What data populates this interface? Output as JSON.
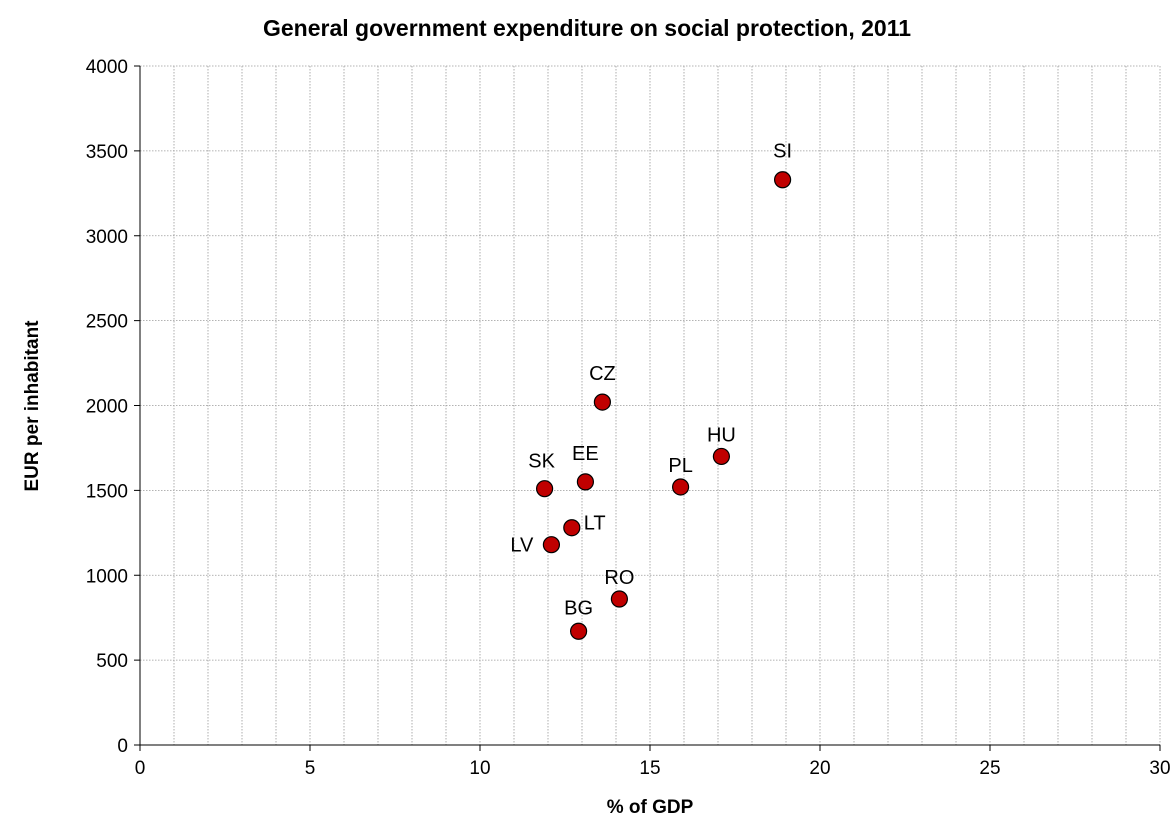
{
  "chart_data": {
    "type": "scatter",
    "title": "General government expenditure on social protection, 2011",
    "xlabel": "% of GDP",
    "ylabel": "EUR per inhabitant",
    "xlim": [
      0,
      30
    ],
    "ylim": [
      0,
      4000
    ],
    "x_ticks": [
      0,
      5,
      10,
      15,
      20,
      25,
      30
    ],
    "y_ticks": [
      0,
      500,
      1000,
      1500,
      2000,
      2500,
      3000,
      3500,
      4000
    ],
    "x_tick_labels": [
      "0",
      "5",
      "10",
      "15",
      "20",
      "25",
      "30"
    ],
    "y_tick_labels": [
      "0",
      "500",
      "1000",
      "1500",
      "2000",
      "2500",
      "3000",
      "3500",
      "4000"
    ],
    "grid": true,
    "legend": "none",
    "marker_color": "#c00000",
    "points": [
      {
        "label": "SI",
        "x": 18.9,
        "y": 3330
      },
      {
        "label": "CZ",
        "x": 13.6,
        "y": 2020
      },
      {
        "label": "HU",
        "x": 17.1,
        "y": 1700
      },
      {
        "label": "PL",
        "x": 15.9,
        "y": 1520
      },
      {
        "label": "EE",
        "x": 13.1,
        "y": 1550
      },
      {
        "label": "SK",
        "x": 11.9,
        "y": 1510
      },
      {
        "label": "LT",
        "x": 12.7,
        "y": 1280
      },
      {
        "label": "LV",
        "x": 12.1,
        "y": 1180
      },
      {
        "label": "RO",
        "x": 14.1,
        "y": 860
      },
      {
        "label": "BG",
        "x": 12.9,
        "y": 670
      }
    ]
  }
}
